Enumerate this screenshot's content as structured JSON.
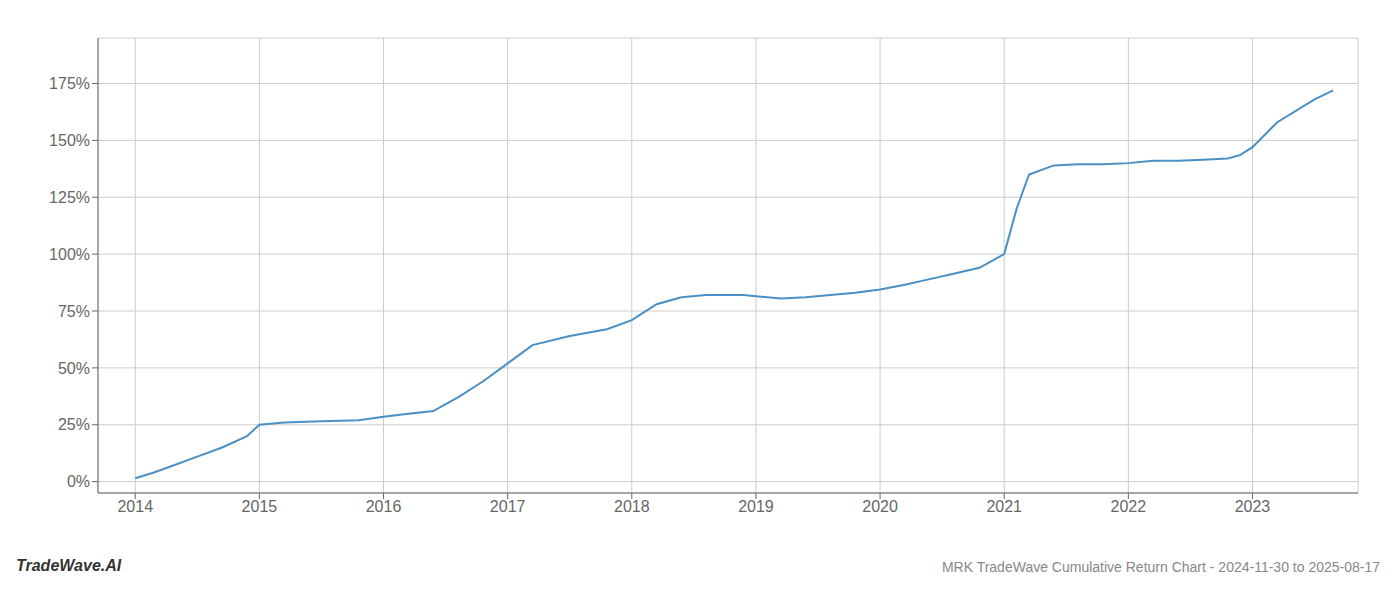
{
  "chart_data": {
    "type": "line",
    "title": "MRK TradeWave Cumulative Return Chart - 2024-11-30 to 2025-08-17",
    "annotations": [
      "TradeWave.AI"
    ],
    "color": "#4a90c4",
    "grid": true,
    "x": [
      2014.0,
      2014.15,
      2014.3,
      2014.5,
      2014.7,
      2014.9,
      2015.0,
      2015.2,
      2015.5,
      2015.8,
      2016.0,
      2016.15,
      2016.4,
      2016.6,
      2016.8,
      2017.0,
      2017.2,
      2017.5,
      2017.8,
      2018.0,
      2018.2,
      2018.4,
      2018.6,
      2018.9,
      2019.0,
      2019.2,
      2019.4,
      2019.6,
      2019.8,
      2020.0,
      2020.2,
      2020.4,
      2020.6,
      2020.8,
      2021.0,
      2021.1,
      2021.2,
      2021.4,
      2021.6,
      2021.8,
      2022.0,
      2022.2,
      2022.4,
      2022.6,
      2022.8,
      2022.9,
      2023.0,
      2023.2,
      2023.5,
      2023.65
    ],
    "values": [
      1.5,
      4.0,
      7.0,
      11.0,
      15.0,
      20.0,
      25.0,
      26.0,
      26.5,
      27.0,
      28.5,
      29.5,
      31.0,
      37.0,
      44.0,
      52.0,
      60.0,
      64.0,
      67.0,
      71.0,
      78.0,
      81.0,
      82.0,
      82.0,
      81.5,
      80.5,
      81.0,
      82.0,
      83.0,
      84.5,
      86.5,
      89.0,
      91.5,
      94.0,
      100.0,
      120.0,
      135.0,
      139.0,
      139.5,
      139.5,
      140.0,
      141.0,
      141.0,
      141.5,
      142.0,
      143.5,
      147.0,
      158.0,
      168.0,
      172.0
    ],
    "xlim": [
      2013.7,
      2023.85
    ],
    "xticks": [
      2014,
      2015,
      2016,
      2017,
      2018,
      2019,
      2020,
      2021,
      2022,
      2023
    ],
    "ylim": [
      -5,
      195
    ],
    "yticks": [
      {
        "value": 0,
        "label": "0%"
      },
      {
        "value": 25,
        "label": "25%"
      },
      {
        "value": 50,
        "label": "50%"
      },
      {
        "value": 75,
        "label": "75%"
      },
      {
        "value": 100,
        "label": "100%"
      },
      {
        "value": 125,
        "label": "125%"
      },
      {
        "value": 150,
        "label": "150%"
      },
      {
        "value": 175,
        "label": "175%"
      }
    ]
  }
}
